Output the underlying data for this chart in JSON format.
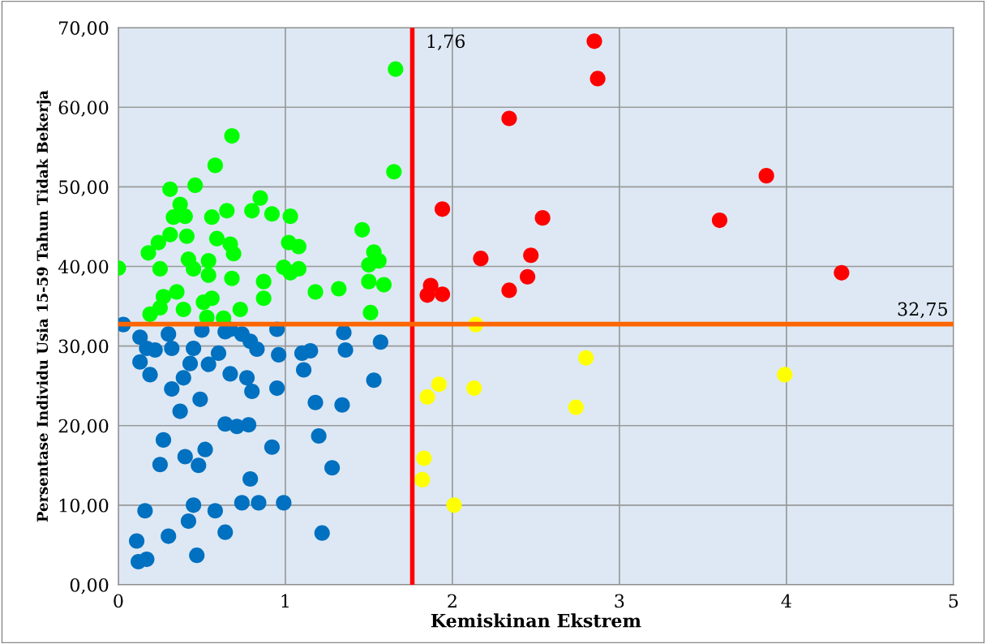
{
  "chart_data": {
    "type": "scatter",
    "xlabel": "Kemiskinan Ekstrem",
    "ylabel": "Persentase Individu Usia 15-59 Tahun Tidak Bekerja",
    "xlim": [
      0,
      5
    ],
    "xticks": [
      0,
      1,
      2,
      3,
      4,
      5
    ],
    "ylim": [
      0,
      70
    ],
    "yticks": [
      {
        "value": 0,
        "label": "0,00"
      },
      {
        "value": 10,
        "label": "10,00"
      },
      {
        "value": 20,
        "label": "20,00"
      },
      {
        "value": 30,
        "label": "30,00"
      },
      {
        "value": 40,
        "label": "40,00"
      },
      {
        "value": 50,
        "label": "50,00"
      },
      {
        "value": 60,
        "label": "60,00"
      },
      {
        "value": 70,
        "label": "70,00"
      }
    ],
    "grid": true,
    "marker": "circle",
    "ref_lines": [
      {
        "axis": "x",
        "value": 1.76,
        "label": "1,76",
        "color": "#ff0000"
      },
      {
        "axis": "y",
        "value": 32.75,
        "label": "32,75",
        "color": "#ff6600"
      }
    ],
    "series": [
      {
        "color": "#00ff00",
        "x": [
          0.0,
          0.68,
          0.58,
          0.46,
          0.31,
          0.85,
          0.37,
          0.8,
          0.65,
          0.92,
          1.03,
          0.56,
          0.4,
          0.33,
          0.31,
          0.41,
          1.46,
          0.59,
          0.24,
          0.67,
          1.02,
          1.08,
          0.18,
          0.42,
          0.69,
          1.53,
          0.42,
          0.54,
          1.56,
          0.99,
          1.08,
          0.25,
          0.45,
          1.5,
          1.03,
          0.54,
          0.68,
          0.87,
          1.5,
          1.59,
          1.32,
          1.18,
          0.35,
          0.27,
          0.56,
          0.87,
          0.51,
          0.25,
          0.39,
          0.73,
          0.19,
          1.51,
          0.63,
          0.53,
          1.66,
          1.65
        ],
        "values": [
          39.8,
          56.4,
          52.7,
          50.2,
          49.7,
          48.6,
          47.8,
          47.0,
          47.0,
          46.6,
          46.3,
          46.2,
          46.3,
          46.2,
          44.0,
          43.8,
          44.6,
          43.5,
          43.0,
          42.8,
          43.0,
          42.5,
          41.7,
          null,
          41.6,
          41.8,
          40.9,
          40.7,
          40.7,
          39.9,
          39.7,
          39.7,
          39.7,
          40.2,
          39.2,
          38.9,
          38.5,
          38.1,
          38.1,
          37.7,
          37.2,
          36.8,
          36.8,
          36.2,
          36.0,
          36.0,
          35.5,
          34.8,
          34.6,
          34.6,
          34.0,
          34.2,
          33.5,
          33.6,
          64.8,
          51.9
        ]
      },
      {
        "color": "#0070c0",
        "x": [
          0.03,
          0.13,
          0.3,
          0.5,
          0.67,
          0.95,
          1.35,
          0.74,
          0.64,
          0.79,
          1.57,
          0.17,
          0.22,
          0.32,
          0.45,
          0.6,
          0.83,
          1.36,
          1.15,
          0.96,
          1.1,
          0.13,
          0.43,
          0.54,
          0.19,
          0.67,
          0.77,
          1.11,
          0.39,
          0.8,
          0.32,
          0.95,
          1.53,
          0.49,
          1.18,
          1.34,
          0.37,
          0.64,
          0.71,
          0.78,
          1.2,
          0.92,
          0.27,
          0.52,
          0.25,
          0.48,
          1.28,
          0.4,
          0.79,
          0.45,
          0.74,
          0.84,
          0.99,
          0.16,
          0.58,
          0.42,
          0.64,
          1.22,
          0.3,
          0.11,
          0.17,
          0.12,
          0.47
        ],
        "values": [
          32.7,
          31.1,
          31.5,
          32.0,
          32.1,
          32.1,
          31.7,
          31.5,
          31.8,
          30.6,
          30.5,
          29.7,
          29.5,
          29.7,
          29.7,
          29.1,
          29.6,
          29.5,
          29.4,
          28.9,
          29.1,
          28.0,
          27.8,
          27.7,
          26.4,
          26.5,
          26.0,
          27.0,
          26.0,
          24.3,
          24.6,
          24.7,
          25.7,
          23.3,
          22.9,
          22.6,
          21.8,
          20.2,
          19.9,
          20.1,
          18.7,
          17.3,
          18.2,
          17.0,
          15.1,
          15.0,
          14.7,
          16.1,
          13.3,
          10.0,
          10.3,
          10.3,
          10.3,
          9.3,
          9.3,
          8.0,
          6.6,
          6.5,
          6.1,
          5.5,
          3.2,
          2.9,
          3.7
        ]
      },
      {
        "color": "#ff0000",
        "x": [
          2.85,
          2.87,
          2.34,
          3.88,
          1.94,
          3.6,
          2.54,
          2.47,
          2.17,
          4.33,
          2.45,
          2.34,
          1.87,
          1.85,
          1.94
        ],
        "values": [
          68.3,
          63.6,
          58.6,
          51.4,
          47.2,
          45.8,
          46.1,
          41.4,
          41.0,
          39.2,
          38.7,
          37.0,
          37.6,
          36.4,
          36.5
        ]
      },
      {
        "color": "#ffff00",
        "x": [
          2.14,
          2.8,
          3.99,
          1.92,
          2.13,
          1.85,
          2.74,
          1.83,
          1.82,
          2.01
        ],
        "values": [
          32.7,
          28.5,
          26.4,
          25.2,
          24.7,
          23.6,
          22.3,
          15.9,
          13.2,
          10.0
        ]
      }
    ]
  }
}
